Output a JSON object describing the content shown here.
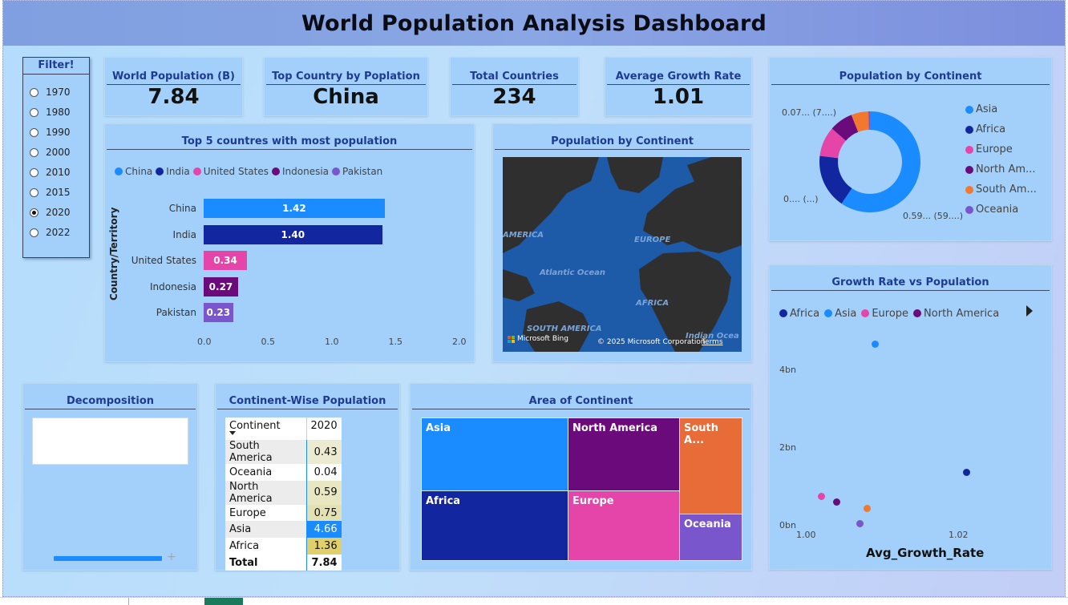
{
  "title": "World Population Analysis Dashboard",
  "filter": {
    "title": "Filter!",
    "options": [
      "1970",
      "1980",
      "1990",
      "2000",
      "2010",
      "2015",
      "2020",
      "2022"
    ],
    "selected": "2020"
  },
  "kpis": [
    {
      "label": "World Population (B)",
      "value": "7.84"
    },
    {
      "label": "Top Country by Poplation",
      "value": "China"
    },
    {
      "label": "Total Countries",
      "value": "234"
    },
    {
      "label": "Average Growth Rate",
      "value": "1.01"
    }
  ],
  "top5": {
    "title": "Top 5 countres with most population",
    "ylabel": "Country/Territory",
    "legend": [
      "China",
      "India",
      "United States",
      "Indonesia",
      "Pakistan"
    ],
    "colors": [
      "#1a8cff",
      "#1226a0",
      "#e545a8",
      "#6b0a7a",
      "#7a56cc"
    ],
    "xticks": [
      "0.0",
      "0.5",
      "1.0",
      "1.5",
      "2.0"
    ]
  },
  "map": {
    "title": "Population by Continent",
    "labels": {
      "america": "AMERICA",
      "europe": "EUROPE",
      "atlantic": "Atlantic Ocean",
      "africa": "AFRICA",
      "south_america": "SOUTH AMERICA",
      "indian": "Indian Ocea"
    },
    "attribution": "© 2025 Microsoft Corporation",
    "terms": "Terms",
    "brand": "Microsoft Bing"
  },
  "donut": {
    "title": "Population by Continent",
    "legend": [
      "Asia",
      "Africa",
      "Europe",
      "North Am...",
      "South Am...",
      "Oceania"
    ],
    "colors": [
      "#1a8cff",
      "#1226a0",
      "#e545a8",
      "#6b0a7a",
      "#f0782f",
      "#7a56cc"
    ],
    "callouts": {
      "top": "0.07... (7....)",
      "left": "0.... (...)",
      "bottom": "0.59... (59....)"
    }
  },
  "scatter": {
    "title": "Growth Rate vs Population",
    "legend": [
      "Africa",
      "Asia",
      "Europe",
      "North America"
    ],
    "legend_colors": [
      "#1226a0",
      "#1a8cff",
      "#e545a8",
      "#6b0a7a"
    ],
    "yticks": [
      "4bn",
      "2bn",
      "0bn"
    ],
    "xticks": [
      "1.00",
      "1.02"
    ],
    "xlabel": "Avg_Growth_Rate"
  },
  "decomposition": {
    "title": "Decomposition",
    "plus": "+"
  },
  "continent_table": {
    "title": "Continent-Wise Population",
    "headers": [
      "Continent",
      "2020"
    ],
    "rows": [
      {
        "name": "South America",
        "value": "0.43",
        "bg": "#ecebd2"
      },
      {
        "name": "Oceania",
        "value": "0.04",
        "bg": "#ffffff"
      },
      {
        "name": "North America",
        "value": "0.59",
        "bg": "#e8e7c2"
      },
      {
        "name": "Europe",
        "value": "0.75",
        "bg": "#e3e1b3"
      },
      {
        "name": "Asia",
        "value": "4.66",
        "bg": "#1a8cff"
      },
      {
        "name": "Africa",
        "value": "1.36",
        "bg": "#e0cf6a"
      }
    ],
    "total_label": "Total",
    "total_value": "7.84"
  },
  "treemap": {
    "title": "Area of Continent",
    "cells": [
      "Asia",
      "North America",
      "South A...",
      "Africa",
      "Europe",
      "Oceania"
    ],
    "colors": [
      "#1a8cff",
      "#6b0a7a",
      "#e86c38",
      "#1226a0",
      "#e545a8",
      "#7a56cc"
    ]
  },
  "chart_data": [
    {
      "type": "bar",
      "title": "Top 5 countres with most population",
      "categories": [
        "China",
        "India",
        "United States",
        "Indonesia",
        "Pakistan"
      ],
      "values": [
        1.42,
        1.4,
        0.34,
        0.27,
        0.23
      ],
      "xlim": [
        0,
        2.0
      ],
      "ylabel": "Country/Territory",
      "legend_position": "top-left"
    },
    {
      "type": "pie",
      "title": "Population by Continent",
      "categories": [
        "Asia",
        "Africa",
        "Europe",
        "North America",
        "South America",
        "Oceania"
      ],
      "values": [
        4.66,
        1.36,
        0.75,
        0.59,
        0.43,
        0.04
      ],
      "legend_position": "right"
    },
    {
      "type": "scatter",
      "title": "Growth Rate vs Population",
      "xlabel": "Avg_Growth_Rate",
      "ylim": [
        0,
        5
      ],
      "points": [
        {
          "series": "Asia",
          "x": 1.009,
          "y": 4.66,
          "color": "#1a8cff"
        },
        {
          "series": "Africa",
          "x": 1.021,
          "y": 1.36,
          "color": "#1226a0"
        },
        {
          "series": "Europe",
          "x": 1.002,
          "y": 0.75,
          "color": "#e545a8"
        },
        {
          "series": "North America",
          "x": 1.004,
          "y": 0.59,
          "color": "#6b0a7a"
        },
        {
          "series": "South America",
          "x": 1.008,
          "y": 0.43,
          "color": "#f0782f"
        },
        {
          "series": "Oceania",
          "x": 1.007,
          "y": 0.04,
          "color": "#7a56cc"
        }
      ],
      "legend_position": "top"
    },
    {
      "type": "table",
      "title": "Continent-Wise Population",
      "columns": [
        "Continent",
        "2020"
      ],
      "rows": [
        [
          "South America",
          0.43
        ],
        [
          "Oceania",
          0.04
        ],
        [
          "North America",
          0.59
        ],
        [
          "Europe",
          0.75
        ],
        [
          "Asia",
          4.66
        ],
        [
          "Africa",
          1.36
        ]
      ],
      "total": 7.84
    }
  ]
}
